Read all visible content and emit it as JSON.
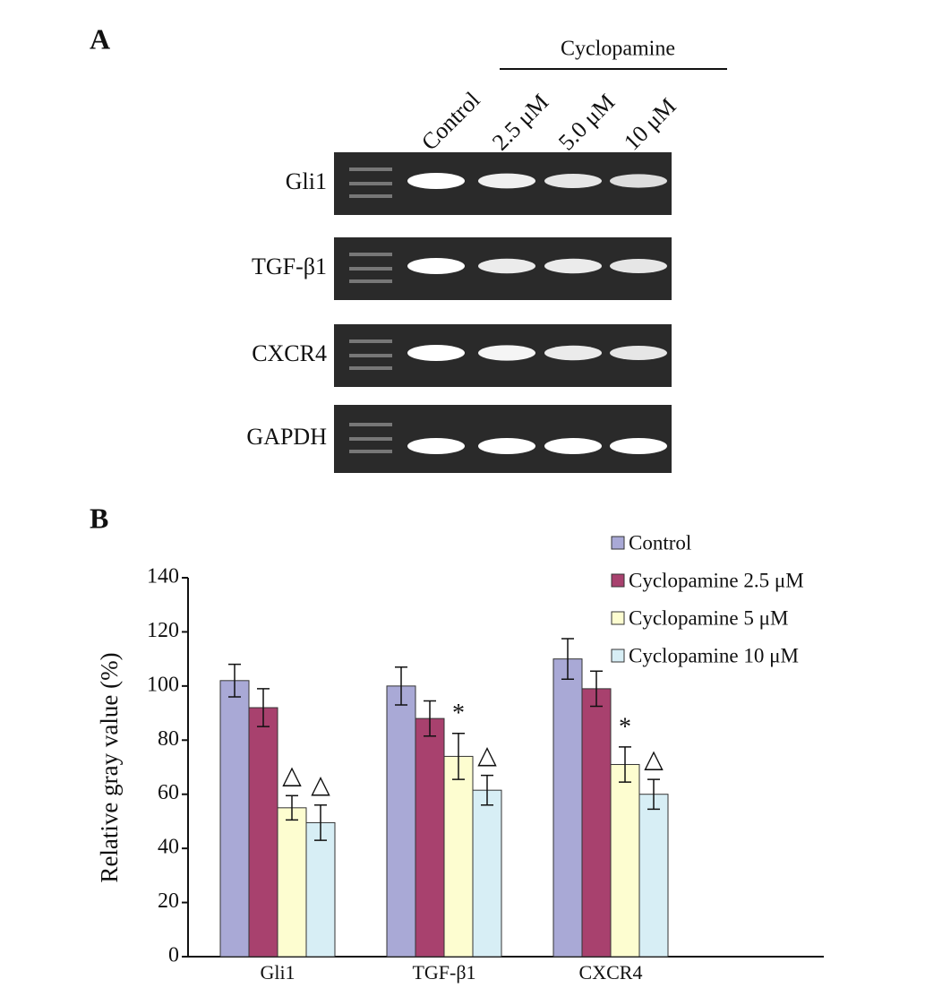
{
  "panel_a": {
    "label": "A",
    "treatment": "Cyclopamine",
    "lanes": [
      "Control",
      "2.5 μM",
      "5.0 μM",
      "10 μM"
    ],
    "genes": [
      "Gli1",
      "TGF-β1",
      "CXCR4",
      "GAPDH"
    ]
  },
  "chart_data": {
    "type": "bar",
    "label": "B",
    "y_label": "Relative gray value (%)",
    "categories": [
      "Gli1",
      "TGF-β1",
      "CXCR4"
    ],
    "ylim": [
      0,
      140
    ],
    "yticks": [
      0,
      20,
      40,
      60,
      80,
      100,
      120,
      140
    ],
    "grid": false,
    "legend": "top-right",
    "series": [
      {
        "name": "Control",
        "color": "#a9a9d6",
        "values": [
          102,
          100,
          110
        ],
        "errors": [
          6,
          7,
          7.5
        ],
        "annotations": [
          null,
          null,
          null
        ]
      },
      {
        "name": "Cyclopamine 2.5 μM",
        "color": "#a8416e",
        "values": [
          92,
          88,
          99
        ],
        "errors": [
          7,
          6.5,
          6.5
        ],
        "annotations": [
          null,
          null,
          null
        ]
      },
      {
        "name": "Cyclopamine 5 μM",
        "color": "#fdfdd0",
        "values": [
          55,
          74,
          71
        ],
        "errors": [
          4.5,
          8.5,
          6.5
        ],
        "annotations": [
          "△",
          "*",
          "*"
        ]
      },
      {
        "name": "Cyclopamine 10 μM",
        "color": "#d7eef5",
        "values": [
          49.5,
          61.5,
          60
        ],
        "errors": [
          6.5,
          5.5,
          5.5
        ],
        "annotations": [
          "△",
          "△",
          "△"
        ]
      }
    ]
  }
}
